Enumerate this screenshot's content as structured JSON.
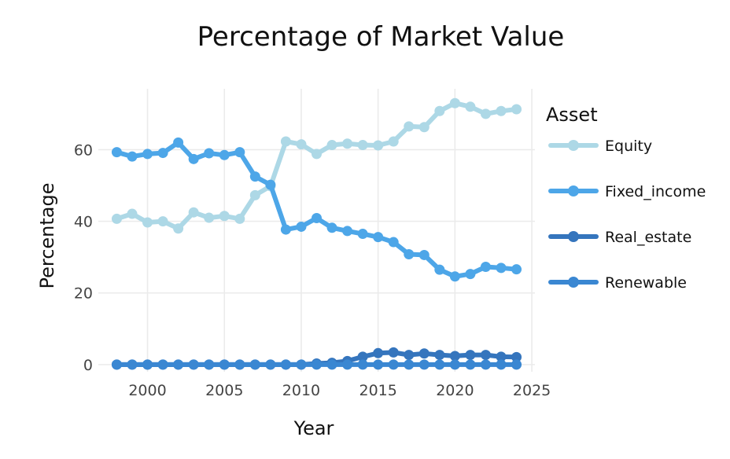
{
  "chart_data": {
    "type": "line",
    "title": "Percentage of Market Value",
    "xlabel": "Year",
    "ylabel": "Percentage",
    "xlim": [
      1996.8,
      2025.2
    ],
    "ylim": [
      -2,
      77
    ],
    "xticks": [
      2000,
      2005,
      2010,
      2015,
      2020,
      2025
    ],
    "yticks": [
      0,
      20,
      40,
      60
    ],
    "grid": true,
    "legend_title": "Asset",
    "legend_position": "right",
    "x": [
      1998,
      1999,
      2000,
      2001,
      2002,
      2003,
      2004,
      2005,
      2006,
      2007,
      2008,
      2009,
      2010,
      2011,
      2012,
      2013,
      2014,
      2015,
      2016,
      2017,
      2018,
      2019,
      2020,
      2021,
      2022,
      2023,
      2024
    ],
    "series": [
      {
        "name": "Equity",
        "color": "#add8e6",
        "values": [
          40.7,
          42.1,
          39.7,
          40.0,
          38.0,
          42.5,
          41.0,
          41.5,
          40.7,
          47.3,
          49.8,
          62.3,
          61.5,
          58.8,
          61.3,
          61.7,
          61.3,
          61.2,
          62.3,
          66.5,
          66.3,
          70.8,
          73.0,
          72.0,
          70.0,
          70.8,
          71.3
        ]
      },
      {
        "name": "Fixed_income",
        "color": "#4da6e8",
        "values": [
          59.3,
          58.1,
          58.8,
          59.1,
          62.0,
          57.4,
          59.0,
          58.5,
          59.3,
          52.5,
          50.2,
          37.7,
          38.5,
          40.9,
          38.2,
          37.3,
          36.5,
          35.6,
          34.2,
          30.8,
          30.6,
          26.5,
          24.6,
          25.3,
          27.3,
          27.0,
          26.6
        ]
      },
      {
        "name": "Real_estate",
        "color": "#3575bd",
        "values": [
          0,
          0,
          0,
          0,
          0,
          0,
          0,
          0,
          0,
          0,
          0,
          0,
          0,
          0.3,
          0.5,
          1.0,
          2.2,
          3.2,
          3.4,
          2.7,
          3.1,
          2.7,
          2.4,
          2.7,
          2.7,
          2.2,
          2.1
        ]
      },
      {
        "name": "Renewable",
        "color": "#3a87d2",
        "values": [
          0,
          0,
          0,
          0,
          0,
          0,
          0,
          0,
          0,
          0,
          0,
          0,
          0,
          0,
          0,
          0,
          0,
          0,
          0,
          0,
          0,
          0,
          0,
          0,
          0,
          0,
          0
        ]
      }
    ]
  }
}
